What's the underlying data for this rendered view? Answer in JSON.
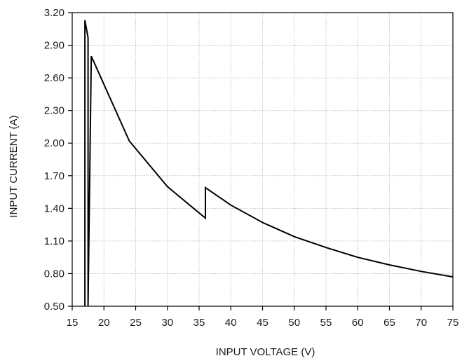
{
  "chart_data": {
    "type": "line",
    "xlabel": "INPUT VOLTAGE (V)",
    "ylabel": "INPUT CURRENT (A)",
    "xlim": [
      15,
      75
    ],
    "ylim": [
      0.5,
      3.2
    ],
    "x_ticks": [
      "15",
      "20",
      "25",
      "30",
      "35",
      "40",
      "45",
      "50",
      "55",
      "60",
      "65",
      "70",
      "75"
    ],
    "y_ticks": [
      "0.50",
      "0.80",
      "1.10",
      "1.40",
      "1.70",
      "2.00",
      "2.30",
      "2.60",
      "2.90",
      "3.20"
    ],
    "x_tick_values": [
      15,
      20,
      25,
      30,
      35,
      40,
      45,
      50,
      55,
      60,
      65,
      70,
      75
    ],
    "y_tick_values": [
      0.5,
      0.8,
      1.1,
      1.4,
      1.7,
      2.0,
      2.3,
      2.6,
      2.9,
      3.2
    ],
    "grid": true,
    "series": [
      {
        "x": [
          17,
          17,
          17.5,
          17.5,
          18,
          24,
          30,
          36,
          36,
          40,
          45,
          50,
          55,
          60,
          65,
          70,
          75
        ],
        "y": [
          0.5,
          3.13,
          2.97,
          0.5,
          2.8,
          2.02,
          1.6,
          1.31,
          1.59,
          1.43,
          1.27,
          1.14,
          1.04,
          0.95,
          0.88,
          0.82,
          0.77
        ]
      }
    ]
  }
}
